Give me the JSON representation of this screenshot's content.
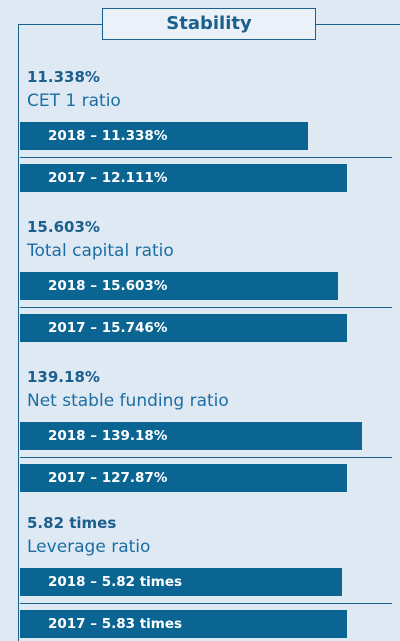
{
  "title": "Stability",
  "groups": [
    {
      "headline": "11.338%",
      "label": "CET 1 ratio",
      "bars": [
        "2018 – 11.338%",
        "2017 – 12.111%"
      ]
    },
    {
      "headline": "15.603%",
      "label": "Total capital ratio",
      "bars": [
        "2018 – 15.603%",
        "2017 – 15.746%"
      ]
    },
    {
      "headline": "139.18%",
      "label": "Net stable funding ratio",
      "bars": [
        "2018 – 139.18%",
        "2017 – 127.87%"
      ]
    },
    {
      "headline": "5.82 times",
      "label": "Leverage ratio",
      "bars": [
        "2018 – 5.82 times",
        "2017 – 5.83 times"
      ]
    }
  ]
}
